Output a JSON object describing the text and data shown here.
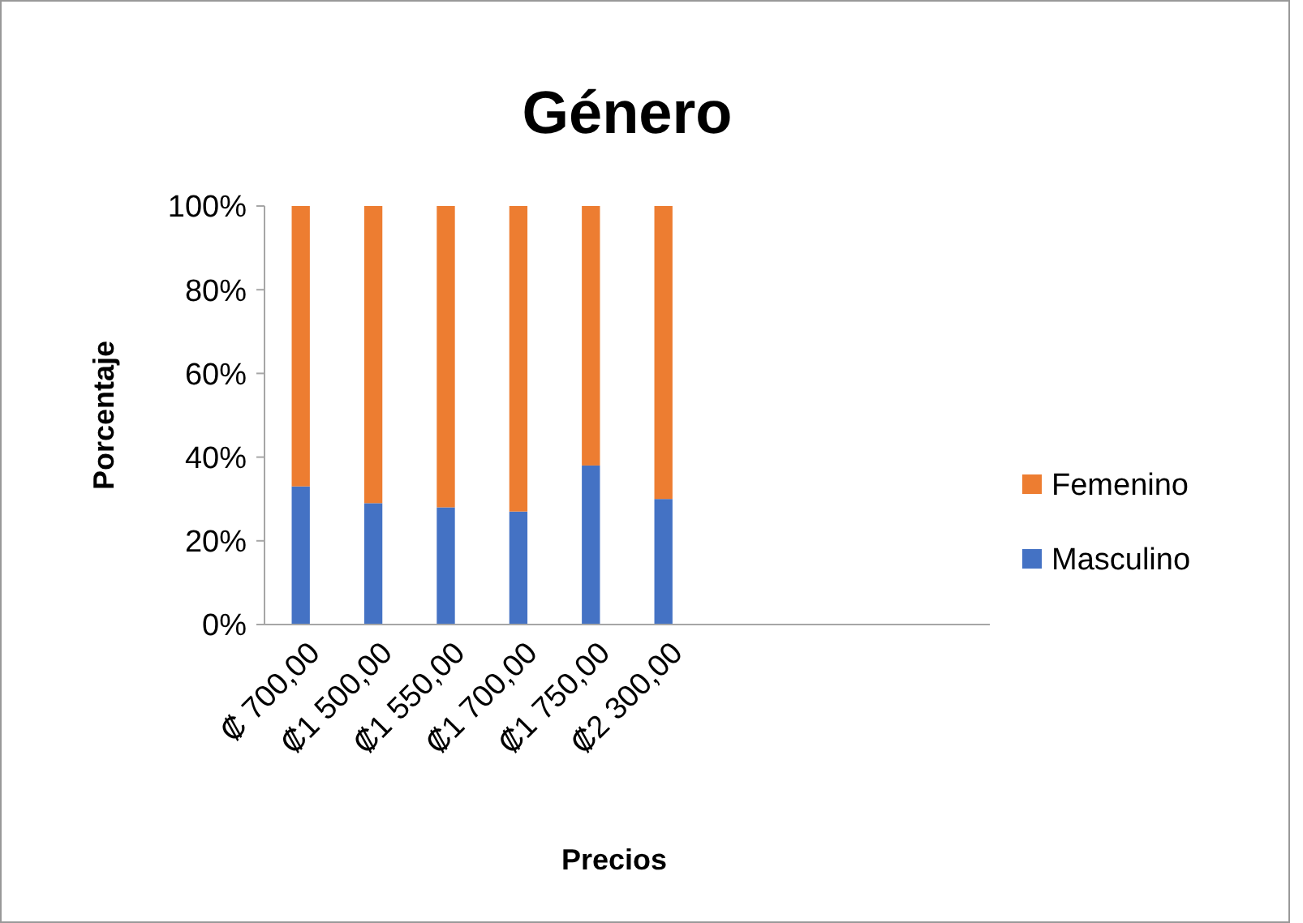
{
  "chart_data": {
    "type": "bar",
    "title": "Género",
    "xlabel": "Precios",
    "ylabel": "Porcentaje",
    "categories": [
      "₡ 700,00",
      "₡1 500,00",
      "₡1 550,00",
      "₡1 700,00",
      "₡1 750,00",
      "₡2 300,00",
      null,
      null,
      null,
      null
    ],
    "series": [
      {
        "name": "Masculino",
        "color": "#4472c4",
        "values": [
          33,
          29,
          28,
          27,
          38,
          30,
          0,
          0,
          0,
          0
        ]
      },
      {
        "name": "Femenino",
        "color": "#ed7d31",
        "values": [
          67,
          71,
          72,
          73,
          62,
          70,
          0,
          0,
          0,
          0
        ]
      }
    ],
    "stacked": true,
    "ylim": [
      0,
      100
    ],
    "yticks": [
      {
        "value": 0,
        "label": "0%"
      },
      {
        "value": 20,
        "label": "20%"
      },
      {
        "value": 40,
        "label": "40%"
      },
      {
        "value": 60,
        "label": "60%"
      },
      {
        "value": 80,
        "label": "80%"
      },
      {
        "value": 100,
        "label": "100%"
      }
    ],
    "grid": false,
    "legend": "right"
  }
}
